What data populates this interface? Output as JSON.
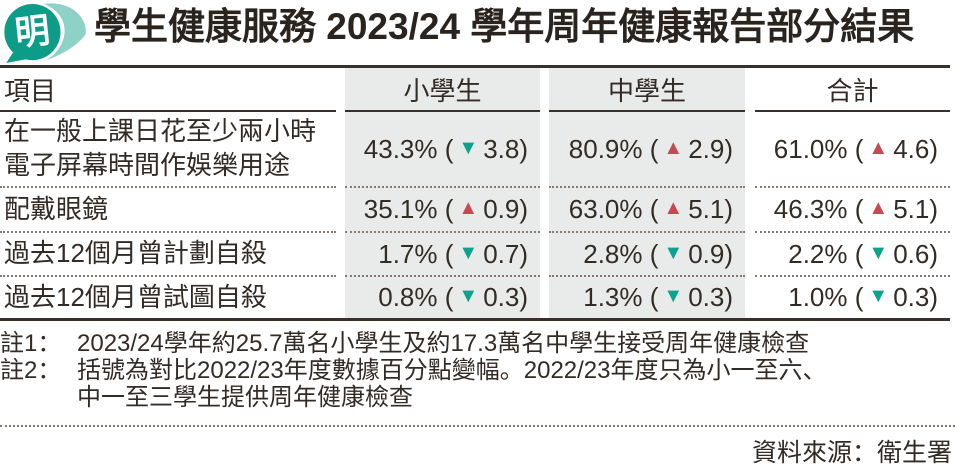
{
  "header": {
    "logo_glyph": "明",
    "title": "學生健康服務 2023/24 學年周年健康報告部分結果"
  },
  "table": {
    "columns": [
      "項目",
      "小學生",
      "中學生",
      "合計"
    ],
    "rows": [
      {
        "label_lines": [
          "在一般上課日花至少兩小時",
          "電子屏幕時間作娛樂用途"
        ],
        "values": [
          {
            "value": "43.3%",
            "direction": "down",
            "change": "3.8"
          },
          {
            "value": "80.9%",
            "direction": "up",
            "change": "2.9"
          },
          {
            "value": "61.0%",
            "direction": "up",
            "change": "4.6"
          }
        ]
      },
      {
        "label_lines": [
          "配戴眼鏡"
        ],
        "values": [
          {
            "value": "35.1%",
            "direction": "up",
            "change": "0.9"
          },
          {
            "value": "63.0%",
            "direction": "up",
            "change": "5.1"
          },
          {
            "value": "46.3%",
            "direction": "up",
            "change": "5.1"
          }
        ]
      },
      {
        "label_lines": [
          "過去12個月曾計劃自殺"
        ],
        "values": [
          {
            "value": "1.7%",
            "direction": "down",
            "change": "0.7"
          },
          {
            "value": "2.8%",
            "direction": "down",
            "change": "0.9"
          },
          {
            "value": "2.2%",
            "direction": "down",
            "change": "0.6"
          }
        ]
      },
      {
        "label_lines": [
          "過去12個月曾試圖自殺"
        ],
        "values": [
          {
            "value": "0.8%",
            "direction": "down",
            "change": "0.3"
          },
          {
            "value": "1.3%",
            "direction": "down",
            "change": "0.3"
          },
          {
            "value": "1.0%",
            "direction": "down",
            "change": "0.3"
          }
        ]
      }
    ]
  },
  "chart_data": {
    "type": "table",
    "title": "學生健康服務 2023/24 學年周年健康報告部分結果",
    "columns": [
      "項目",
      "小學生",
      "中學生",
      "合計"
    ],
    "rows": [
      {
        "item": "在一般上課日花至少兩小時電子屏幕時間作娛樂用途",
        "primary_pct": 43.3,
        "primary_change": -3.8,
        "secondary_pct": 80.9,
        "secondary_change": 2.9,
        "total_pct": 61.0,
        "total_change": 4.6
      },
      {
        "item": "配戴眼鏡",
        "primary_pct": 35.1,
        "primary_change": 0.9,
        "secondary_pct": 63.0,
        "secondary_change": 5.1,
        "total_pct": 46.3,
        "total_change": 5.1
      },
      {
        "item": "過去12個月曾計劃自殺",
        "primary_pct": 1.7,
        "primary_change": -0.7,
        "secondary_pct": 2.8,
        "secondary_change": -0.9,
        "total_pct": 2.2,
        "total_change": -0.6
      },
      {
        "item": "過去12個月曾試圖自殺",
        "primary_pct": 0.8,
        "primary_change": -0.3,
        "secondary_pct": 1.3,
        "secondary_change": -0.3,
        "total_pct": 1.0,
        "total_change": -0.3
      }
    ]
  },
  "notes": [
    {
      "label": "註1：",
      "lines": [
        "2023/24學年約25.7萬名小學生及約17.3萬名中學生接受周年健康檢查"
      ]
    },
    {
      "label": "註2：",
      "lines": [
        "括號為對比2022/23年度數據百分點變幅。2022/23年度只為小一至六、",
        "中一至三學生提供周年健康檢查"
      ]
    }
  ],
  "source": "資料來源：衛生署",
  "icons": {
    "up": "▲",
    "down": "▼"
  },
  "colors": {
    "up": "#c64a52",
    "down": "#0ba28e",
    "column_bg": "#e8ebe9",
    "logo_dark": "#0d9c88",
    "logo_light": "#8ed1c6",
    "text": "#332b25"
  }
}
